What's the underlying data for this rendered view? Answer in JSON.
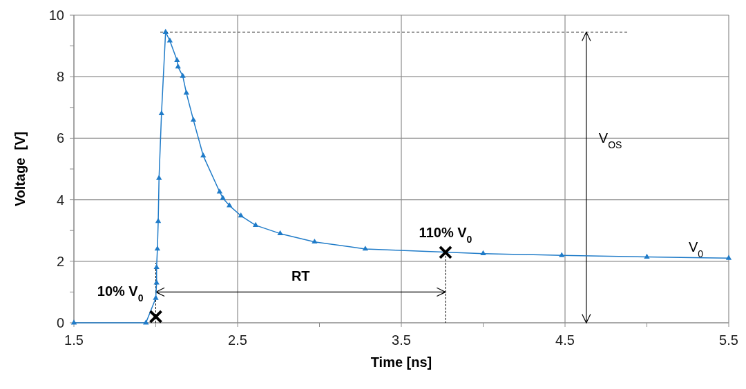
{
  "chart_data": {
    "type": "line",
    "xlabel": "Time [ns]",
    "ylabel": "Voltage  [V]",
    "xlim": [
      1.5,
      5.5
    ],
    "ylim": [
      0,
      10
    ],
    "xticks": [
      1.5,
      {
        "value": 2.0,
        "label": null
      },
      2.5,
      {
        "value": 3.0,
        "label": null
      },
      3.5,
      {
        "value": 4.0,
        "label": null
      },
      4.5,
      {
        "value": 5.0,
        "label": null
      },
      5.5
    ],
    "yticks": [
      0,
      {
        "value": 1,
        "label": null
      },
      2,
      {
        "value": 3,
        "label": null
      },
      4,
      {
        "value": 5,
        "label": null
      },
      6,
      {
        "value": 7,
        "label": null
      },
      8,
      {
        "value": 9,
        "label": null
      },
      10
    ],
    "grid": true,
    "series": [
      {
        "color": "#1f7bc8",
        "marker": "triangle",
        "x": [
          1.5,
          1.94,
          2.0,
          2.005,
          2.005,
          2.01,
          2.015,
          2.02,
          2.035,
          2.06,
          2.086,
          2.13,
          2.136,
          2.165,
          2.187,
          2.23,
          2.29,
          2.39,
          2.41,
          2.45,
          2.52,
          2.61,
          2.76,
          2.97,
          3.28,
          4.0,
          4.48,
          5.0,
          5.5
        ],
        "values": [
          0,
          0,
          0.8,
          1.3,
          1.8,
          2.4,
          3.3,
          4.7,
          6.8,
          9.45,
          9.17,
          8.53,
          8.32,
          8.02,
          7.47,
          6.59,
          5.43,
          4.26,
          4.05,
          3.81,
          3.48,
          3.17,
          2.9,
          2.63,
          2.4,
          2.25,
          2.19,
          2.14,
          2.1
        ]
      },
      {
        "type": "scatter",
        "color": "#000000",
        "marker": "cross",
        "x": [
          2.0,
          3.77
        ],
        "values": [
          0.2,
          2.29
        ]
      }
    ],
    "ref_lines": [
      {
        "axis": "y",
        "value": 9.45,
        "line_style": "dashed",
        "color": "#000000"
      },
      {
        "axis": "x",
        "value": 4.63,
        "label": "V$_{OS}$",
        "line_style": "solid",
        "color": "#000000"
      },
      {
        "axis": "y",
        "value": 1.0,
        "label": "RT",
        "line_style": "solid",
        "color": "#000000"
      }
    ],
    "annotations": [
      {
        "text": "110% V$_{0}$",
        "x": 3.77,
        "y": 2.29
      },
      {
        "text": "10% V$_{0}$",
        "x": 2.0,
        "y": 0.2
      },
      {
        "text": "V$_{0}$",
        "x": 5.3,
        "y": 2.14
      }
    ]
  }
}
